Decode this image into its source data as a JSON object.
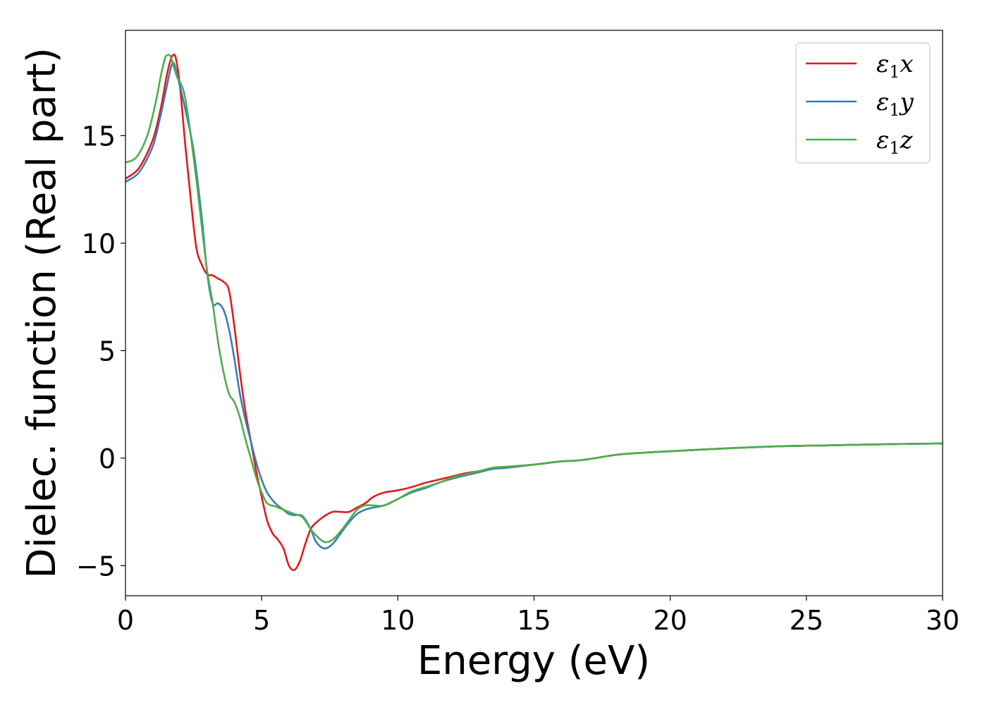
{
  "chart_data": {
    "type": "line",
    "xlabel": "Energy (eV)",
    "ylabel": "Dielec. function (Real part)",
    "xlim": [
      0,
      30
    ],
    "ylim": [
      -6.4,
      19.9
    ],
    "xticks": [
      0,
      5,
      10,
      15,
      20,
      25,
      30
    ],
    "xtick_labels": [
      "0",
      "5",
      "10",
      "15",
      "20",
      "25",
      "30"
    ],
    "yticks": [
      -5,
      0,
      5,
      10,
      15
    ],
    "ytick_labels": [
      "−5",
      "0",
      "5",
      "10",
      "15"
    ],
    "grid": false,
    "legend_position": "top-right",
    "series": [
      {
        "name": "ε₁x",
        "legend_base": "ε",
        "legend_sub": "1",
        "legend_var": "x",
        "color": "#e41a1c",
        "x": [
          0,
          0.5,
          1.0,
          1.3,
          1.5,
          1.65,
          1.75,
          1.85,
          2.0,
          2.2,
          2.4,
          2.6,
          2.8,
          3.0,
          3.2,
          3.4,
          3.6,
          3.8,
          4.0,
          4.2,
          4.4,
          4.6,
          4.8,
          5.0,
          5.2,
          5.4,
          5.6,
          5.8,
          6.0,
          6.2,
          6.4,
          6.6,
          6.8,
          7.0,
          7.3,
          7.6,
          7.9,
          8.2,
          8.5,
          8.8,
          9.1,
          9.5,
          10.0,
          10.5,
          11.0,
          11.5,
          12.0,
          12.5,
          13.0,
          13.5,
          14.0,
          15.0,
          16.0,
          16.5,
          17.0,
          18.0,
          19.0,
          20.0,
          22.0,
          24.0,
          26.0,
          28.0,
          30.0
        ],
        "y": [
          13.0,
          13.5,
          14.8,
          16.3,
          17.7,
          18.5,
          18.75,
          18.6,
          17.3,
          14.5,
          12.0,
          9.8,
          9.0,
          8.55,
          8.5,
          8.35,
          8.2,
          7.8,
          6.1,
          4.0,
          2.2,
          0.8,
          -0.6,
          -1.8,
          -2.9,
          -3.5,
          -3.8,
          -4.2,
          -5.0,
          -5.2,
          -4.8,
          -4.0,
          -3.3,
          -3.0,
          -2.7,
          -2.5,
          -2.5,
          -2.5,
          -2.3,
          -2.1,
          -1.8,
          -1.6,
          -1.5,
          -1.35,
          -1.15,
          -1.0,
          -0.85,
          -0.7,
          -0.6,
          -0.45,
          -0.4,
          -0.3,
          -0.15,
          -0.12,
          -0.05,
          0.15,
          0.25,
          0.32,
          0.45,
          0.55,
          0.6,
          0.65,
          0.68
        ]
      },
      {
        "name": "ε₁y",
        "legend_base": "ε",
        "legend_sub": "1",
        "legend_var": "y",
        "color": "#377eb8",
        "x": [
          0,
          0.5,
          1.0,
          1.3,
          1.5,
          1.6,
          1.7,
          1.8,
          2.0,
          2.2,
          2.5,
          2.8,
          3.0,
          3.2,
          3.4,
          3.6,
          3.8,
          4.0,
          4.2,
          4.4,
          4.6,
          4.8,
          5.0,
          5.2,
          5.5,
          5.8,
          6.0,
          6.2,
          6.5,
          6.8,
          7.0,
          7.3,
          7.6,
          7.9,
          8.2,
          8.5,
          8.8,
          9.1,
          9.5,
          10.0,
          10.5,
          11.0,
          11.5,
          12.0,
          12.5,
          13.0,
          13.5,
          14.0,
          15.0,
          16.0,
          16.5,
          17.0,
          18.0,
          19.0,
          20.0,
          22.0,
          24.0,
          26.0,
          28.0,
          30.0
        ],
        "y": [
          12.85,
          13.3,
          14.5,
          16.0,
          17.2,
          17.8,
          18.3,
          18.3,
          17.3,
          16.2,
          14.3,
          11.2,
          8.6,
          7.2,
          7.2,
          6.9,
          6.0,
          4.6,
          3.0,
          1.8,
          0.8,
          -0.2,
          -1.0,
          -1.6,
          -2.1,
          -2.4,
          -2.6,
          -2.65,
          -2.7,
          -3.3,
          -3.9,
          -4.2,
          -4.0,
          -3.5,
          -3.0,
          -2.6,
          -2.4,
          -2.3,
          -2.2,
          -1.9,
          -1.6,
          -1.4,
          -1.15,
          -0.95,
          -0.8,
          -0.65,
          -0.5,
          -0.45,
          -0.3,
          -0.15,
          -0.12,
          -0.05,
          0.15,
          0.25,
          0.32,
          0.45,
          0.55,
          0.6,
          0.65,
          0.68
        ]
      },
      {
        "name": "ε₁z",
        "legend_base": "ε",
        "legend_sub": "1",
        "legend_var": "z",
        "color": "#4daf4a",
        "x": [
          0,
          0.4,
          0.8,
          1.1,
          1.3,
          1.45,
          1.55,
          1.65,
          1.75,
          1.9,
          2.0,
          2.2,
          2.5,
          2.8,
          3.0,
          3.2,
          3.4,
          3.6,
          3.8,
          4.0,
          4.2,
          4.4,
          4.6,
          4.8,
          5.0,
          5.2,
          5.5,
          5.8,
          6.0,
          6.2,
          6.5,
          6.8,
          7.0,
          7.3,
          7.6,
          7.9,
          8.2,
          8.5,
          8.8,
          9.1,
          9.5,
          10.0,
          10.5,
          11.0,
          11.5,
          12.0,
          12.5,
          13.0,
          13.5,
          14.0,
          15.0,
          16.0,
          16.5,
          17.0,
          18.0,
          19.0,
          20.0,
          22.0,
          24.0,
          26.0,
          28.0,
          30.0
        ],
        "y": [
          13.75,
          14.0,
          15.0,
          16.5,
          17.8,
          18.6,
          18.75,
          18.7,
          18.3,
          17.7,
          17.5,
          16.7,
          14.0,
          10.8,
          8.7,
          7.2,
          5.4,
          4.0,
          3.0,
          2.6,
          1.9,
          0.9,
          0.0,
          -0.9,
          -1.6,
          -2.1,
          -2.25,
          -2.4,
          -2.5,
          -2.6,
          -2.75,
          -3.3,
          -3.6,
          -3.9,
          -3.8,
          -3.4,
          -2.9,
          -2.4,
          -2.2,
          -2.2,
          -2.2,
          -1.9,
          -1.55,
          -1.35,
          -1.15,
          -0.9,
          -0.75,
          -0.6,
          -0.45,
          -0.4,
          -0.3,
          -0.15,
          -0.12,
          -0.05,
          0.15,
          0.25,
          0.32,
          0.45,
          0.55,
          0.6,
          0.65,
          0.68
        ]
      }
    ]
  }
}
